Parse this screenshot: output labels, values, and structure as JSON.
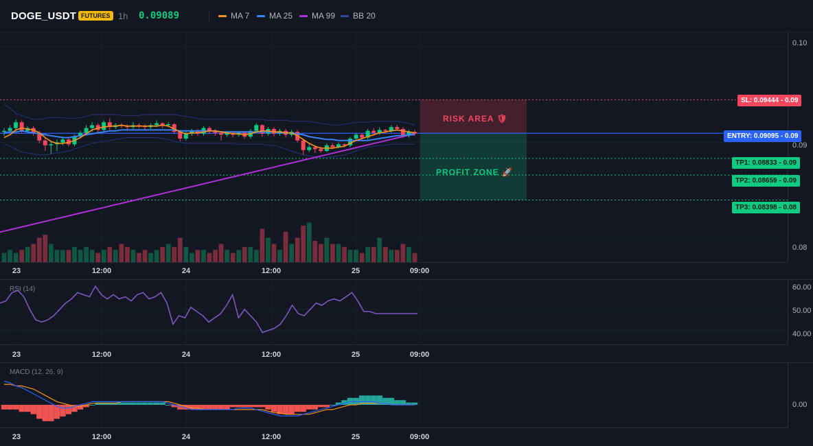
{
  "header": {
    "symbol": "DOGE_USDT",
    "badge": "FUTURES",
    "timeframe": "1h",
    "price": "0.09089",
    "legend": [
      {
        "label": "MA 7",
        "color": "#f7931a"
      },
      {
        "label": "MA 25",
        "color": "#3b82f6"
      },
      {
        "label": "MA 99",
        "color": "#b02fd6"
      },
      {
        "label": "BB 20",
        "color": "#1e3a8a"
      }
    ]
  },
  "main_axis": {
    "labels": [
      "0.10",
      "0.09",
      "0.08"
    ]
  },
  "time_axis": [
    "23",
    "12:00",
    "24",
    "12:00",
    "25",
    "09:00"
  ],
  "levels": {
    "sl": "SL: 0.09444",
    "entry": "ENTRY: 0.09095",
    "tp1": "TP1: 0.08833",
    "tp2": "TP2: 0.08659",
    "tp3": "TP3: 0.08398",
    "sl_axis": "0.09",
    "entry_axis": "0.09",
    "tp1_axis": "0.09",
    "tp2_axis": "0.09",
    "tp3_axis": "0.08"
  },
  "zones": {
    "risk": "RISK AREA",
    "risk_icon": "🛡",
    "profit": "PROFIT ZONE",
    "profit_icon": "🚀"
  },
  "rsi": {
    "label": "RSI (14)",
    "axis": [
      "60.00",
      "50.00",
      "40.00"
    ]
  },
  "macd": {
    "label": "MACD (12, 26, 9)",
    "axis": [
      "0.00"
    ]
  },
  "colors": {
    "up": "#0ecb81",
    "down": "#f6465d",
    "ma7": "#f7931a",
    "ma25": "#3b82f6",
    "ma99": "#b02fd6",
    "bb": "#1e3a8a",
    "rsi": "#7e57c2",
    "entry": "#2962ff",
    "sl": "#f6465d",
    "tp": "#0ecb81"
  },
  "chart_data": {
    "type": "candlestick",
    "price_range": [
      0.0775,
      0.1015
    ],
    "candles": [
      [
        0.0911,
        0.0912,
        0.0907,
        0.0915
      ],
      [
        0.0912,
        0.0915,
        0.091,
        0.0918
      ],
      [
        0.0915,
        0.0921,
        0.0913,
        0.0924
      ],
      [
        0.0921,
        0.0912,
        0.091,
        0.0923
      ],
      [
        0.0912,
        0.0915,
        0.091,
        0.0917
      ],
      [
        0.0915,
        0.091,
        0.0907,
        0.0917
      ],
      [
        0.091,
        0.0902,
        0.0899,
        0.0912
      ],
      [
        0.0902,
        0.0897,
        0.0891,
        0.0905
      ],
      [
        0.0897,
        0.0898,
        0.0888,
        0.0901
      ],
      [
        0.0898,
        0.09,
        0.0891,
        0.0903
      ],
      [
        0.09,
        0.0903,
        0.0897,
        0.0905
      ],
      [
        0.0903,
        0.0898,
        0.0896,
        0.0905
      ],
      [
        0.0898,
        0.0906,
        0.0896,
        0.0908
      ],
      [
        0.0906,
        0.091,
        0.0904,
        0.0912
      ],
      [
        0.091,
        0.0915,
        0.0908,
        0.0918
      ],
      [
        0.0915,
        0.0918,
        0.0911,
        0.0921
      ],
      [
        0.0918,
        0.0913,
        0.091,
        0.092
      ],
      [
        0.0913,
        0.0921,
        0.0911,
        0.0923
      ],
      [
        0.0921,
        0.0916,
        0.0913,
        0.0925
      ],
      [
        0.0916,
        0.0918,
        0.0914,
        0.092
      ],
      [
        0.0918,
        0.0917,
        0.0915,
        0.092
      ],
      [
        0.0917,
        0.0916,
        0.0913,
        0.0919
      ],
      [
        0.0916,
        0.0918,
        0.0914,
        0.0921
      ],
      [
        0.0918,
        0.0917,
        0.0915,
        0.092
      ],
      [
        0.0917,
        0.0916,
        0.0913,
        0.0919
      ],
      [
        0.0916,
        0.0918,
        0.0914,
        0.092
      ],
      [
        0.0918,
        0.092,
        0.0916,
        0.0923
      ],
      [
        0.092,
        0.0918,
        0.0915,
        0.0921
      ],
      [
        0.0918,
        0.0919,
        0.0916,
        0.0921
      ],
      [
        0.0919,
        0.0911,
        0.0909,
        0.092
      ],
      [
        0.0911,
        0.0904,
        0.0901,
        0.0913
      ],
      [
        0.0904,
        0.0909,
        0.0902,
        0.0912
      ],
      [
        0.0909,
        0.0912,
        0.0907,
        0.0914
      ],
      [
        0.0912,
        0.0909,
        0.0907,
        0.0914
      ],
      [
        0.0909,
        0.0915,
        0.0907,
        0.0917
      ],
      [
        0.0915,
        0.0912,
        0.0909,
        0.0917
      ],
      [
        0.0912,
        0.091,
        0.0907,
        0.0914
      ],
      [
        0.091,
        0.0908,
        0.0902,
        0.0912
      ],
      [
        0.0908,
        0.091,
        0.0906,
        0.0912
      ],
      [
        0.091,
        0.0908,
        0.0905,
        0.0912
      ],
      [
        0.0908,
        0.091,
        0.0906,
        0.0912
      ],
      [
        0.091,
        0.0906,
        0.0904,
        0.0912
      ],
      [
        0.0906,
        0.0912,
        0.0904,
        0.0914
      ],
      [
        0.0912,
        0.0918,
        0.091,
        0.092
      ],
      [
        0.0918,
        0.0909,
        0.0906,
        0.0919
      ],
      [
        0.0909,
        0.0914,
        0.0907,
        0.0916
      ],
      [
        0.0914,
        0.0909,
        0.0906,
        0.0916
      ],
      [
        0.0909,
        0.0912,
        0.0907,
        0.0914
      ],
      [
        0.0912,
        0.0908,
        0.0905,
        0.0914
      ],
      [
        0.0908,
        0.0911,
        0.0906,
        0.0913
      ],
      [
        0.0911,
        0.0902,
        0.09,
        0.0913
      ],
      [
        0.0902,
        0.0892,
        0.0887,
        0.0904
      ],
      [
        0.0892,
        0.0895,
        0.089,
        0.0898
      ],
      [
        0.0895,
        0.0893,
        0.0889,
        0.0897
      ],
      [
        0.0893,
        0.0891,
        0.0889,
        0.0896
      ],
      [
        0.0891,
        0.0897,
        0.089,
        0.0899
      ],
      [
        0.0897,
        0.0895,
        0.0893,
        0.0899
      ],
      [
        0.0895,
        0.0898,
        0.0894,
        0.09
      ],
      [
        0.0898,
        0.0897,
        0.0895,
        0.0899
      ],
      [
        0.0897,
        0.0904,
        0.0895,
        0.0906
      ],
      [
        0.0904,
        0.0908,
        0.0902,
        0.091
      ],
      [
        0.0908,
        0.0905,
        0.0903,
        0.091
      ],
      [
        0.0905,
        0.0912,
        0.0903,
        0.0914
      ],
      [
        0.0912,
        0.091,
        0.0907,
        0.0915
      ],
      [
        0.091,
        0.0913,
        0.0908,
        0.0916
      ],
      [
        0.0913,
        0.0912,
        0.0909,
        0.0914
      ],
      [
        0.0912,
        0.0916,
        0.091,
        0.0918
      ],
      [
        0.0916,
        0.0914,
        0.0912,
        0.0918
      ],
      [
        0.0914,
        0.0907,
        0.0905,
        0.0916
      ],
      [
        0.0907,
        0.0911,
        0.0905,
        0.0913
      ],
      [
        0.0911,
        0.0909,
        0.0907,
        0.0913
      ]
    ],
    "volume": [
      3,
      4,
      3,
      4,
      5,
      6,
      8,
      9,
      6,
      4,
      4,
      4,
      5,
      4,
      5,
      4,
      3,
      4,
      5,
      4,
      6,
      5,
      4,
      3,
      4,
      3,
      4,
      5,
      6,
      5,
      8,
      5,
      3,
      4,
      4,
      3,
      4,
      6,
      4,
      3,
      4,
      5,
      5,
      4,
      11,
      8,
      6,
      4,
      10,
      6,
      8,
      12,
      13,
      7,
      6,
      8,
      6,
      6,
      5,
      4,
      4,
      3,
      5,
      5,
      8,
      5,
      4,
      4,
      6,
      5,
      3
    ],
    "ma7": [
      0.0905,
      0.0908,
      0.0913,
      0.0915,
      0.0914,
      0.0913,
      0.091,
      0.0905,
      0.0901,
      0.0899,
      0.0899,
      0.09,
      0.0902,
      0.0905,
      0.0909,
      0.0913,
      0.0915,
      0.0916,
      0.0917,
      0.0917,
      0.0918,
      0.0917,
      0.0917,
      0.0917,
      0.0917,
      0.0917,
      0.0917,
      0.0918,
      0.0917,
      0.0914,
      0.0911,
      0.0909,
      0.091,
      0.091,
      0.0911,
      0.0912,
      0.0912,
      0.0911,
      0.091,
      0.0909,
      0.0909,
      0.0908,
      0.0909,
      0.0911,
      0.0912,
      0.0912,
      0.0911,
      0.0911,
      0.091,
      0.091,
      0.0907,
      0.0903,
      0.0899,
      0.0896,
      0.0894,
      0.0894,
      0.0894,
      0.0895,
      0.0896,
      0.0899,
      0.0902,
      0.0904,
      0.0906,
      0.0908,
      0.091,
      0.0911,
      0.0912,
      0.0913,
      0.0912,
      0.0911,
      0.091
    ],
    "ma25": [
      0.091,
      0.0911,
      0.0911,
      0.0912,
      0.0911,
      0.091,
      0.0909,
      0.0908,
      0.0907,
      0.0906,
      0.0905,
      0.0905,
      0.0906,
      0.0907,
      0.0908,
      0.0909,
      0.091,
      0.0911,
      0.0912,
      0.0912,
      0.0913,
      0.0913,
      0.0913,
      0.0913,
      0.0913,
      0.0913,
      0.0913,
      0.0913,
      0.0913,
      0.0913,
      0.0912,
      0.0912,
      0.0912,
      0.0912,
      0.0912,
      0.0912,
      0.0912,
      0.0911,
      0.0911,
      0.0911,
      0.0911,
      0.0911,
      0.0911,
      0.0911,
      0.0911,
      0.0911,
      0.0911,
      0.091,
      0.091,
      0.091,
      0.0909,
      0.0908,
      0.0906,
      0.0905,
      0.0904,
      0.0903,
      0.0903,
      0.0902,
      0.0902,
      0.0902,
      0.0902,
      0.0902,
      0.0902,
      0.0903,
      0.0904,
      0.0905,
      0.0906,
      0.0907,
      0.0907,
      0.0908,
      0.0908
    ],
    "ma99_start": 0.0806,
    "ma99_end": 0.0909,
    "bb_upper": [
      0.094,
      0.0936,
      0.093,
      0.0928,
      0.0926,
      0.0924,
      0.0924,
      0.0925,
      0.0926,
      0.0926,
      0.0926,
      0.0925,
      0.0925,
      0.0926,
      0.0927,
      0.0929,
      0.0929,
      0.0929,
      0.0929,
      0.0929,
      0.0928,
      0.0928,
      0.0928,
      0.0928,
      0.0929,
      0.0929,
      0.0929,
      0.0929,
      0.0929,
      0.0929,
      0.0928,
      0.0927,
      0.0926,
      0.0925,
      0.0924,
      0.0924,
      0.0924,
      0.0924,
      0.0924,
      0.0924,
      0.0924,
      0.0924,
      0.0924,
      0.0924,
      0.0924,
      0.0923,
      0.0923,
      0.0923,
      0.0923,
      0.0922,
      0.0922,
      0.0922,
      0.0922,
      0.0921,
      0.092,
      0.0919,
      0.0918,
      0.0918,
      0.0919,
      0.092,
      0.0921,
      0.0921,
      0.0921,
      0.0922,
      0.0922,
      0.0922,
      0.0922,
      0.0922,
      0.0921,
      0.092,
      0.0918
    ],
    "bb_lower": [
      0.0898,
      0.0896,
      0.0893,
      0.089,
      0.0889,
      0.0888,
      0.0887,
      0.0887,
      0.0888,
      0.0889,
      0.089,
      0.0891,
      0.0893,
      0.0895,
      0.0897,
      0.0899,
      0.09,
      0.0901,
      0.0902,
      0.0903,
      0.0904,
      0.0905,
      0.0905,
      0.0905,
      0.0905,
      0.0905,
      0.0905,
      0.0904,
      0.0903,
      0.0901,
      0.09,
      0.0899,
      0.0899,
      0.0899,
      0.0899,
      0.0899,
      0.0899,
      0.0899,
      0.0899,
      0.0899,
      0.0898,
      0.0898,
      0.0898,
      0.0898,
      0.0898,
      0.0897,
      0.0897,
      0.0895,
      0.0893,
      0.0891,
      0.0889,
      0.0887,
      0.0886,
      0.0885,
      0.0884,
      0.0884,
      0.0885,
      0.0886,
      0.0887,
      0.0889,
      0.0891,
      0.0893,
      0.0895,
      0.0896,
      0.0897,
      0.0897,
      0.0898,
      0.0898,
      0.0898,
      0.0898,
      0.0898
    ],
    "rsi": [
      53,
      54,
      58,
      59,
      56,
      50,
      45,
      44,
      45,
      47,
      50,
      53,
      55,
      58,
      57,
      56,
      61,
      57,
      55,
      57,
      55,
      56,
      54,
      57,
      58,
      55,
      56,
      58,
      53,
      43,
      47,
      46,
      51,
      49,
      47,
      44,
      46,
      48,
      52,
      57,
      46,
      50,
      47,
      44,
      39,
      40,
      41,
      43,
      47,
      52,
      48,
      47,
      50,
      53,
      52,
      54,
      55,
      54,
      56,
      58,
      54,
      49,
      49,
      48,
      48,
      48,
      48,
      48,
      48,
      48,
      48
    ],
    "macd_hist": [
      -2,
      -2,
      -2,
      -3,
      -3,
      -4,
      -6,
      -7,
      -7,
      -6,
      -5,
      -4,
      -3,
      -2,
      -1,
      0,
      1,
      1,
      1,
      1,
      1,
      1,
      1,
      1,
      1,
      1,
      1,
      1,
      0,
      -1,
      -2,
      -2,
      -2,
      -2,
      -2,
      -2,
      -2,
      -2,
      -2,
      -1,
      -1,
      -1,
      -1,
      -1,
      -1,
      -2,
      -3,
      -4,
      -4,
      -4,
      -3,
      -3,
      -2,
      -2,
      -1,
      -1,
      0,
      1,
      2,
      3,
      3,
      4,
      4,
      4,
      4,
      3,
      3,
      2,
      2,
      1,
      1
    ],
    "macd_line": [
      15,
      14,
      12,
      11,
      9,
      7,
      5,
      3,
      1,
      -1,
      -2,
      -2,
      -1,
      0,
      1,
      2,
      2,
      2,
      2,
      2,
      2,
      2,
      2,
      2,
      2,
      2,
      2,
      2,
      1,
      0,
      -1,
      -2,
      -3,
      -3,
      -3,
      -3,
      -3,
      -3,
      -3,
      -3,
      -2,
      -2,
      -2,
      -3,
      -4,
      -5,
      -6,
      -7,
      -7,
      -7,
      -7,
      -6,
      -5,
      -4,
      -3,
      -2,
      -1,
      0,
      1,
      2,
      2,
      2,
      2,
      2,
      1,
      1,
      0,
      0,
      0,
      0,
      0
    ],
    "macd_signal": [
      13,
      13,
      12,
      12,
      11,
      10,
      8,
      6,
      4,
      2,
      1,
      0,
      -1,
      -1,
      0,
      1,
      1,
      1,
      1,
      1,
      2,
      2,
      2,
      2,
      2,
      2,
      2,
      2,
      2,
      1,
      0,
      -1,
      -2,
      -2,
      -3,
      -3,
      -3,
      -3,
      -3,
      -3,
      -3,
      -3,
      -3,
      -3,
      -3,
      -4,
      -5,
      -5,
      -6,
      -6,
      -6,
      -6,
      -6,
      -5,
      -4,
      -3,
      -3,
      -2,
      -1,
      0,
      0,
      1,
      1,
      1,
      1,
      1,
      0,
      0,
      0,
      0,
      0
    ]
  }
}
